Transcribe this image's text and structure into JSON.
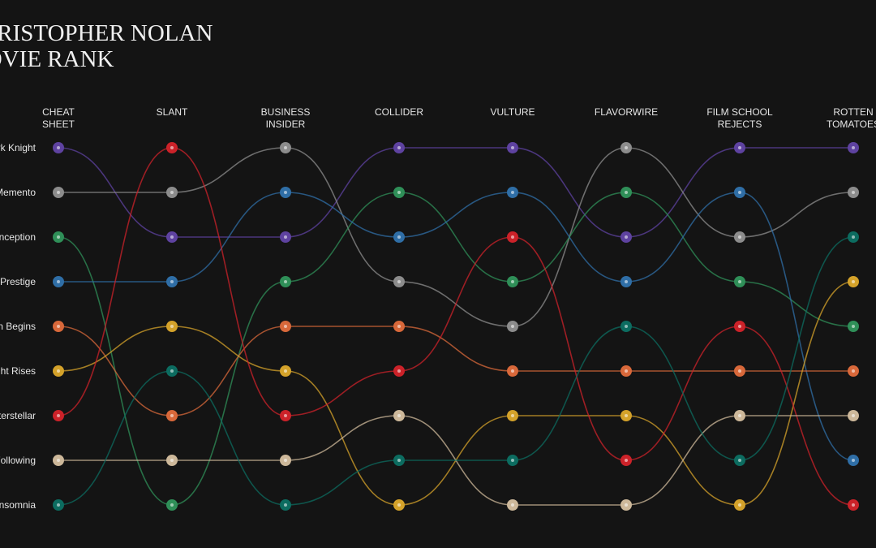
{
  "chart_data": {
    "type": "bump",
    "title": "CHRISTOPHER NOLAN",
    "subtitle": "MOVIE RANK",
    "categories": [
      "CHEAT\nSHEET",
      "SLANT",
      "BUSINESS\nINSIDER",
      "COLLIDER",
      "VULTURE",
      "FLAVORWIRE",
      "FILM SCHOOL\nREJECTS",
      "ROTTEN\nTOMATOES"
    ],
    "ylim": [
      1,
      9
    ],
    "series": [
      {
        "name": "The Dark Knight",
        "color": "#5e42a0",
        "values": [
          1,
          3,
          3,
          1,
          1,
          3,
          1,
          1
        ]
      },
      {
        "name": "Memento",
        "color": "#8c8c8c",
        "values": [
          2,
          2,
          1,
          4,
          5,
          1,
          3,
          2
        ]
      },
      {
        "name": "Inception",
        "color": "#2f8f58",
        "values": [
          3,
          9,
          4,
          2,
          4,
          2,
          4,
          5
        ]
      },
      {
        "name": "The Prestige",
        "color": "#2f6ea6",
        "values": [
          4,
          4,
          2,
          3,
          2,
          4,
          2,
          8
        ]
      },
      {
        "name": "Batman Begins",
        "color": "#d8683a",
        "values": [
          5,
          7,
          5,
          5,
          6,
          6,
          6,
          6
        ]
      },
      {
        "name": "The Dark Knight Rises",
        "color": "#d4a22a",
        "values": [
          6,
          5,
          6,
          9,
          7,
          7,
          9,
          4
        ]
      },
      {
        "name": "Interstellar",
        "color": "#cc2229",
        "values": [
          7,
          1,
          7,
          6,
          3,
          8,
          5,
          9
        ]
      },
      {
        "name": "Following",
        "color": "#cdb89a",
        "values": [
          8,
          8,
          8,
          7,
          9,
          9,
          7,
          7
        ]
      },
      {
        "name": "Insomnia",
        "color": "#0c6c60",
        "values": [
          9,
          6,
          9,
          8,
          8,
          5,
          8,
          3
        ]
      }
    ]
  }
}
